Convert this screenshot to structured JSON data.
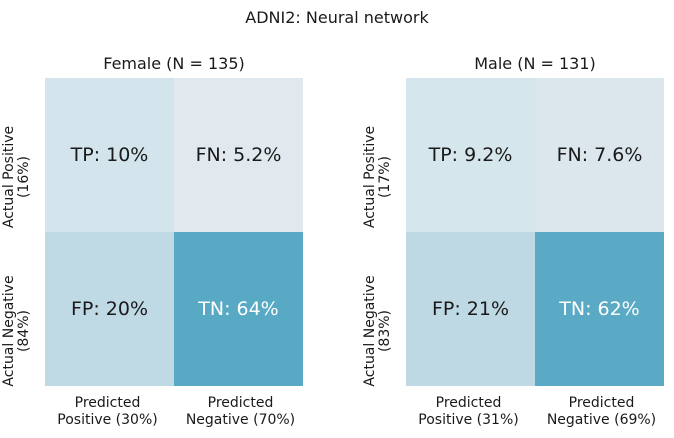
{
  "chart_data": {
    "type": "heatmap",
    "title": "ADNI2: Neural network",
    "panels": [
      {
        "title": "Female (N = 135)",
        "row_labels": [
          {
            "line1": "Actual Positive",
            "line2": "(16%)"
          },
          {
            "line1": "Actual Negative",
            "line2": "(84%)"
          }
        ],
        "col_labels": [
          {
            "line1": "Predicted",
            "line2": "Positive (30%)"
          },
          {
            "line1": "Predicted",
            "line2": "Negative (70%)"
          }
        ],
        "cells": [
          [
            {
              "label": "TP: 10%",
              "value": 10,
              "color": "#d3e4ec",
              "text_color": "#1a1a1a"
            },
            {
              "label": "FN: 5.2%",
              "value": 5.2,
              "color": "#e2e9ee",
              "text_color": "#1a1a1a"
            }
          ],
          [
            {
              "label": "FP: 20%",
              "value": 20,
              "color": "#c0dae5",
              "text_color": "#1a1a1a"
            },
            {
              "label": "TN: 64%",
              "value": 64,
              "color": "#57a9c4",
              "text_color": "#ffffff"
            }
          ]
        ]
      },
      {
        "title": "Male (N = 131)",
        "row_labels": [
          {
            "line1": "Actual Positive",
            "line2": "(17%)"
          },
          {
            "line1": "Actual Negative",
            "line2": "(83%)"
          }
        ],
        "col_labels": [
          {
            "line1": "Predicted",
            "line2": "Positive (31%)"
          },
          {
            "line1": "Predicted",
            "line2": "Negative (69%)"
          }
        ],
        "cells": [
          [
            {
              "label": "TP: 9.2%",
              "value": 9.2,
              "color": "#d6e6ed",
              "text_color": "#1a1a1a"
            },
            {
              "label": "FN: 7.6%",
              "value": 7.6,
              "color": "#dbe7ed",
              "text_color": "#1a1a1a"
            }
          ],
          [
            {
              "label": "FP: 21%",
              "value": 21,
              "color": "#bfd9e4",
              "text_color": "#1a1a1a"
            },
            {
              "label": "TN: 62%",
              "value": 62,
              "color": "#5aaac5",
              "text_color": "#ffffff"
            }
          ]
        ]
      }
    ]
  }
}
